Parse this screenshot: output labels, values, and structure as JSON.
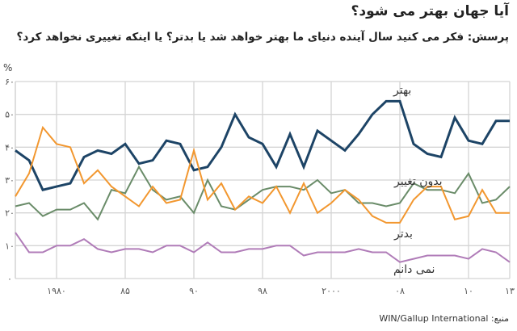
{
  "title": "آیا جهان بهتر می شود؟",
  "subtitle": "پرسش: فکر می کنید سال آینده دنیای ما بهتر خواهد شد یا بدتر؟ یا اینکه تغییری نخواهد کرد؟",
  "source": "منبع: WIN/Gallup International",
  "chart_data": {
    "type": "line",
    "title": "آیا جهان بهتر می شود؟",
    "ylabel": "%",
    "ylim": [
      0,
      60
    ],
    "yticks": [
      0,
      10,
      20,
      30,
      40,
      50,
      60
    ],
    "ytick_labels": [
      "۰",
      "۱۰",
      "۲۰",
      "۳۰",
      "۴۰",
      "۵۰",
      "۶۰"
    ],
    "x_count": 37,
    "xticks": [
      3,
      8,
      13,
      18,
      23,
      28,
      33,
      36
    ],
    "xtick_labels": [
      "۱۹۸۰",
      "۸۵",
      "۹۰",
      "۹۸",
      "۲۰۰۰",
      "۰۸",
      "۱۰",
      "۱۳"
    ],
    "grid": true,
    "series": [
      {
        "name": "بهتر",
        "color": "#1d4466",
        "width": 3,
        "values": [
          39,
          36,
          27,
          28,
          29,
          37,
          39,
          38,
          41,
          35,
          36,
          42,
          41,
          33,
          34,
          40,
          50,
          43,
          41,
          34,
          44,
          34,
          45,
          42,
          39,
          44,
          50,
          54,
          54,
          41,
          38,
          37,
          49,
          42,
          41,
          48,
          48
        ]
      },
      {
        "name": "بدون تغییر",
        "color": "#6a8c69",
        "width": 2,
        "values": [
          22,
          23,
          19,
          21,
          21,
          23,
          18,
          27,
          26,
          34,
          27,
          24,
          25,
          20,
          30,
          22,
          21,
          24,
          27,
          28,
          28,
          27,
          30,
          26,
          27,
          23,
          23,
          22,
          23,
          29,
          27,
          27,
          26,
          32,
          23,
          24,
          28
        ]
      },
      {
        "name": "بدتر",
        "color": "#f2972f",
        "width": 2,
        "values": [
          25,
          32,
          46,
          41,
          40,
          29,
          33,
          28,
          25,
          22,
          28,
          23,
          24,
          39,
          24,
          29,
          21,
          25,
          23,
          28,
          20,
          29,
          20,
          23,
          27,
          24,
          19,
          17,
          17,
          24,
          28,
          28,
          18,
          19,
          27,
          20,
          20
        ]
      },
      {
        "name": "نمی دانم",
        "color": "#b07cb8",
        "width": 2,
        "values": [
          14,
          8,
          8,
          10,
          10,
          12,
          9,
          8,
          9,
          9,
          8,
          10,
          10,
          8,
          11,
          8,
          8,
          9,
          9,
          10,
          10,
          7,
          8,
          8,
          8,
          9,
          8,
          8,
          5,
          6,
          7,
          7,
          7,
          6,
          9,
          8,
          5
        ]
      }
    ]
  }
}
